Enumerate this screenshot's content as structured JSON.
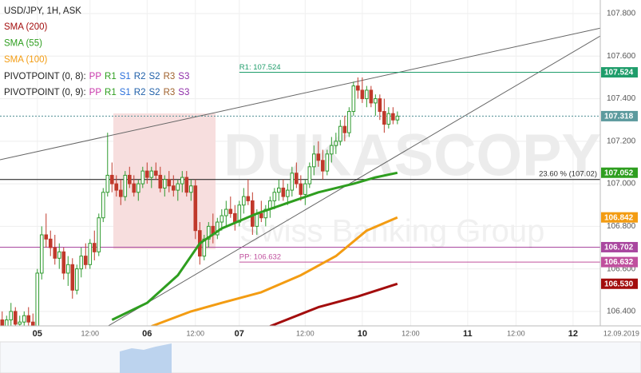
{
  "chart_data": {
    "type": "candlestick",
    "title": "USD/JPY, 1H, ASK",
    "watermark": "DUKASCOPY",
    "watermark_sub": "Swiss Banking Group",
    "xlim": [
      -0.5,
      136.2
    ],
    "ylim": [
      106.332,
      107.864
    ],
    "grid": true,
    "up_color": "#2f9a2f",
    "down_color": "#c0392b",
    "xticks": [
      {
        "value": 8,
        "label": "05"
      },
      {
        "value": 20,
        "label": "12:00"
      },
      {
        "value": 33,
        "label": "06"
      },
      {
        "value": 44,
        "label": "12:00"
      },
      {
        "value": 54,
        "label": "07"
      },
      {
        "value": 69,
        "label": "12:00"
      },
      {
        "value": 82,
        "label": "10"
      },
      {
        "value": 93,
        "label": "12:00"
      },
      {
        "value": 106,
        "label": "11"
      },
      {
        "value": 117,
        "label": "12:00"
      },
      {
        "value": 130,
        "label": "12"
      },
      {
        "value": 141,
        "label": "12.09.2019"
      }
    ],
    "yticks": [
      {
        "value": 106.4,
        "label": "106.400"
      },
      {
        "value": 106.6,
        "label": "106.600"
      },
      {
        "value": 106.8,
        "label": "106.800"
      },
      {
        "value": 107.0,
        "label": "107.000"
      },
      {
        "value": 107.2,
        "label": "107.200"
      },
      {
        "value": 107.4,
        "label": "107.400"
      },
      {
        "value": 107.6,
        "label": "107.600"
      },
      {
        "value": 107.8,
        "label": "107.800"
      }
    ],
    "x": [
      0,
      1,
      2,
      3,
      4,
      5,
      6,
      7,
      8,
      9,
      10,
      11,
      12,
      13,
      14,
      15,
      16,
      17,
      18,
      19,
      20,
      21,
      22,
      23,
      24,
      25,
      26,
      27,
      28,
      29,
      30,
      31,
      32,
      33,
      34,
      35,
      36,
      37,
      38,
      39,
      40,
      41,
      42,
      43,
      44,
      45,
      46,
      47,
      48,
      49,
      50,
      51,
      52,
      53,
      54,
      55,
      56,
      57,
      58,
      59,
      60,
      61,
      62,
      63,
      64,
      65,
      66,
      67,
      68,
      69,
      70,
      71,
      72,
      73,
      74,
      75,
      76,
      77,
      78,
      79,
      80,
      81,
      82,
      83,
      84,
      85,
      86,
      87,
      88,
      89,
      90
    ],
    "candles": [
      [
        106.36,
        106.4,
        106.31,
        106.33
      ],
      [
        106.33,
        106.38,
        106.3,
        106.36
      ],
      [
        106.36,
        106.44,
        106.33,
        106.4
      ],
      [
        106.4,
        106.42,
        106.32,
        106.34
      ],
      [
        106.34,
        106.38,
        106.3,
        106.35
      ],
      [
        106.35,
        106.4,
        106.31,
        106.38
      ],
      [
        106.38,
        106.42,
        106.33,
        106.35
      ],
      [
        106.35,
        106.39,
        106.28,
        106.32
      ],
      [
        106.32,
        106.6,
        106.3,
        106.58
      ],
      [
        106.58,
        106.8,
        106.55,
        106.76
      ],
      [
        106.76,
        106.86,
        106.7,
        106.74
      ],
      [
        106.74,
        106.78,
        106.66,
        106.7
      ],
      [
        106.7,
        106.76,
        106.62,
        106.65
      ],
      [
        106.65,
        106.72,
        106.6,
        106.68
      ],
      [
        106.68,
        106.7,
        106.55,
        106.58
      ],
      [
        106.58,
        106.66,
        106.52,
        106.62
      ],
      [
        106.62,
        106.65,
        106.46,
        106.5
      ],
      [
        106.5,
        106.62,
        106.48,
        106.6
      ],
      [
        106.6,
        106.7,
        106.56,
        106.66
      ],
      [
        106.66,
        106.72,
        106.6,
        106.62
      ],
      [
        106.62,
        106.74,
        106.6,
        106.72
      ],
      [
        106.72,
        106.78,
        106.64,
        106.68
      ],
      [
        106.68,
        106.86,
        106.66,
        106.84
      ],
      [
        106.84,
        106.98,
        106.82,
        106.96
      ],
      [
        106.96,
        107.24,
        106.94,
        107.04
      ],
      [
        107.04,
        107.1,
        106.96,
        107.0
      ],
      [
        107.0,
        107.04,
        106.94,
        106.97
      ],
      [
        106.97,
        107.02,
        106.9,
        106.94
      ],
      [
        106.94,
        107.06,
        106.92,
        107.04
      ],
      [
        107.04,
        107.08,
        106.98,
        107.0
      ],
      [
        107.0,
        107.04,
        106.94,
        106.96
      ],
      [
        106.96,
        107.02,
        106.92,
        107.0
      ],
      [
        107.0,
        107.08,
        106.98,
        107.06
      ],
      [
        107.06,
        107.1,
        107.0,
        107.03
      ],
      [
        107.03,
        107.08,
        106.98,
        107.06
      ],
      [
        107.06,
        107.1,
        107.02,
        107.04
      ],
      [
        107.04,
        107.08,
        106.96,
        106.98
      ],
      [
        106.98,
        107.04,
        106.94,
        107.02
      ],
      [
        107.02,
        107.06,
        106.96,
        106.99
      ],
      [
        106.99,
        107.04,
        106.94,
        106.97
      ],
      [
        106.97,
        107.02,
        106.92,
        107.0
      ],
      [
        107.0,
        107.06,
        106.96,
        107.03
      ],
      [
        107.03,
        107.06,
        106.94,
        106.96
      ],
      [
        106.96,
        107.02,
        106.92,
        106.99
      ],
      [
        106.99,
        107.02,
        106.74,
        106.78
      ],
      [
        106.78,
        106.82,
        106.62,
        106.66
      ],
      [
        106.66,
        106.76,
        106.64,
        106.74
      ],
      [
        106.74,
        106.82,
        106.7,
        106.8
      ],
      [
        106.8,
        106.86,
        106.72,
        106.76
      ],
      [
        106.76,
        106.84,
        106.74,
        106.82
      ],
      [
        106.82,
        106.88,
        106.78,
        106.85
      ],
      [
        106.85,
        106.92,
        106.8,
        106.88
      ],
      [
        106.88,
        106.94,
        106.84,
        106.86
      ],
      [
        106.86,
        106.9,
        106.78,
        106.82
      ],
      [
        106.82,
        106.92,
        106.8,
        106.9
      ],
      [
        106.9,
        106.98,
        106.86,
        106.94
      ],
      [
        106.94,
        107.02,
        106.9,
        106.92
      ],
      [
        106.92,
        106.96,
        106.76,
        106.8
      ],
      [
        106.8,
        106.88,
        106.76,
        106.86
      ],
      [
        106.86,
        106.92,
        106.82,
        106.84
      ],
      [
        106.84,
        106.9,
        106.8,
        106.88
      ],
      [
        106.88,
        106.94,
        106.84,
        106.92
      ],
      [
        106.92,
        106.98,
        106.88,
        106.96
      ],
      [
        106.96,
        107.02,
        106.92,
        106.98
      ],
      [
        106.98,
        107.02,
        106.92,
        106.94
      ],
      [
        106.94,
        107.0,
        106.9,
        106.97
      ],
      [
        106.97,
        107.08,
        106.94,
        107.05
      ],
      [
        107.05,
        107.1,
        106.98,
        107.0
      ],
      [
        107.0,
        107.04,
        106.92,
        106.95
      ],
      [
        106.95,
        107.02,
        106.9,
        107.0
      ],
      [
        107.0,
        107.1,
        106.98,
        107.08
      ],
      [
        107.08,
        107.18,
        107.04,
        107.14
      ],
      [
        107.14,
        107.2,
        107.08,
        107.11
      ],
      [
        107.11,
        107.16,
        107.02,
        107.06
      ],
      [
        107.06,
        107.16,
        107.04,
        107.14
      ],
      [
        107.14,
        107.22,
        107.1,
        107.18
      ],
      [
        107.18,
        107.24,
        107.14,
        107.2
      ],
      [
        107.2,
        107.3,
        107.18,
        107.27
      ],
      [
        107.27,
        107.32,
        107.2,
        107.24
      ],
      [
        107.24,
        107.36,
        107.22,
        107.34
      ],
      [
        107.34,
        107.48,
        107.32,
        107.46
      ],
      [
        107.46,
        107.5,
        107.4,
        107.44
      ],
      [
        107.44,
        107.5,
        107.38,
        107.4
      ],
      [
        107.4,
        107.46,
        107.36,
        107.44
      ],
      [
        107.44,
        107.46,
        107.36,
        107.38
      ],
      [
        107.38,
        107.42,
        107.32,
        107.4
      ],
      [
        107.4,
        107.42,
        107.3,
        107.34
      ],
      [
        107.34,
        107.4,
        107.24,
        107.28
      ],
      [
        107.28,
        107.36,
        107.26,
        107.33
      ],
      [
        107.33,
        107.36,
        107.28,
        107.3
      ],
      [
        107.3,
        107.34,
        107.28,
        107.318
      ]
    ],
    "series": [
      {
        "name": "SMA (200)",
        "color": "#a30d0d",
        "x": [
          61,
          72,
          81,
          90
        ],
        "values": [
          106.33,
          106.42,
          106.47,
          106.53
        ]
      },
      {
        "name": "SMA (55)",
        "color": "#2e9e1f",
        "x": [
          25,
          33,
          40,
          45,
          50,
          58,
          65,
          72,
          80,
          85,
          90
        ],
        "values": [
          106.36,
          106.44,
          106.57,
          106.72,
          106.79,
          106.86,
          106.91,
          106.96,
          107.0,
          107.03,
          107.052
        ]
      },
      {
        "name": "SMA (100)",
        "color": "#f39c12",
        "x": [
          34,
          43,
          50,
          59,
          68,
          76,
          83,
          90
        ],
        "values": [
          106.33,
          106.4,
          106.44,
          106.49,
          106.57,
          106.66,
          106.78,
          106.842
        ]
      }
    ],
    "pivot_legends": [
      {
        "name": "PIVOTPOINT (0, 8):",
        "parts": [
          {
            "label": "PP",
            "color": "#c837ab"
          },
          {
            "label": "R1",
            "color": "#2e9e1f"
          },
          {
            "label": "S1",
            "color": "#2a6fdb"
          },
          {
            "label": "R2",
            "color": "#1f5fa8"
          },
          {
            "label": "S2",
            "color": "#1f5fa8"
          },
          {
            "label": "R3",
            "color": "#a0622d"
          },
          {
            "label": "S3",
            "color": "#8e2ca8"
          }
        ]
      },
      {
        "name": "PIVOTPOINT (0, 9):",
        "parts": [
          {
            "label": "PP",
            "color": "#c837ab"
          },
          {
            "label": "R1",
            "color": "#2e9e1f"
          },
          {
            "label": "S1",
            "color": "#2a6fdb"
          },
          {
            "label": "R2",
            "color": "#1f5fa8"
          },
          {
            "label": "S2",
            "color": "#1f5fa8"
          },
          {
            "label": "R3",
            "color": "#a0622d"
          },
          {
            "label": "S3",
            "color": "#8e2ca8"
          }
        ]
      }
    ],
    "pivot_lines": [
      {
        "label": "R1: 107.524",
        "value": 107.524,
        "from": 54,
        "color": "#1f9d6b"
      },
      {
        "label": "PP: 106.632",
        "value": 106.632,
        "from": 54,
        "color": "#c0509e"
      }
    ],
    "level_line": {
      "value": 106.702,
      "color": "#a9479f"
    },
    "fib": {
      "value": 107.02,
      "label": "23.60 % (107.02)"
    },
    "current": {
      "value": 107.318,
      "color": "#4f8f93"
    },
    "trendlines": [
      {
        "x": [
          -0.5,
          136.2
        ],
        "values": [
          107.113,
          107.732
        ]
      },
      {
        "x": [
          24,
          136.2
        ],
        "values": [
          106.33,
          107.695
        ]
      }
    ],
    "price_tags": [
      {
        "value": 107.524,
        "label": "107.524",
        "color": "#1f9d6b"
      },
      {
        "value": 107.318,
        "label": "107.318",
        "color": "#5c9a9e"
      },
      {
        "value": 107.052,
        "label": "107.052",
        "color": "#2e9e1f"
      },
      {
        "value": 106.842,
        "label": "106.842",
        "color": "#f39c12"
      },
      {
        "value": 106.702,
        "label": "106.702",
        "color": "#a9479f"
      },
      {
        "value": 106.632,
        "label": "106.632",
        "color": "#c0509e"
      },
      {
        "value": 106.53,
        "label": "106.530",
        "color": "#a30d0d"
      }
    ]
  }
}
